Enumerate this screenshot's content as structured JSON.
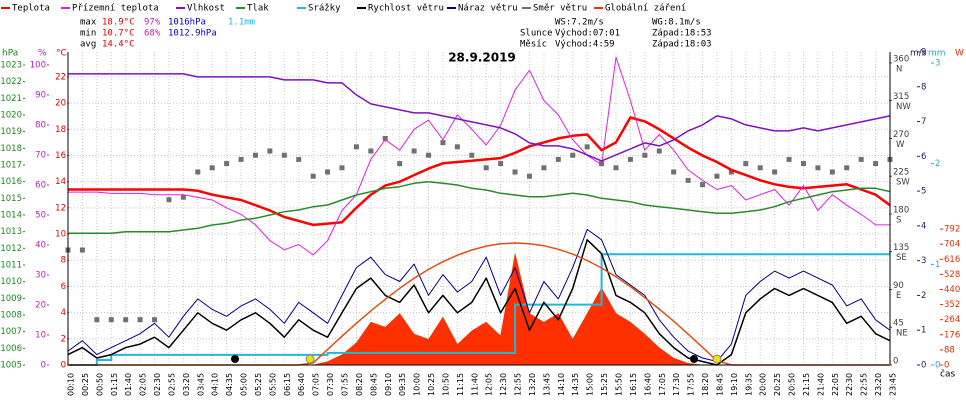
{
  "chart_data": {
    "type": "line",
    "title": "28.9.2019",
    "categories": [
      "00:10",
      "00:25",
      "00:50",
      "01:15",
      "01:40",
      "02:05",
      "02:30",
      "02:55",
      "03:20",
      "03:45",
      "04:10",
      "04:35",
      "05:00",
      "05:25",
      "05:50",
      "06:15",
      "06:40",
      "07:05",
      "07:30",
      "07:55",
      "08:20",
      "08:45",
      "09:10",
      "09:35",
      "10:00",
      "10:25",
      "10:50",
      "11:15",
      "11:40",
      "12:05",
      "12:30",
      "12:55",
      "13:20",
      "13:45",
      "14:10",
      "14:35",
      "15:00",
      "15:25",
      "15:50",
      "16:15",
      "16:40",
      "17:05",
      "17:30",
      "17:55",
      "18:20",
      "18:45",
      "19:10",
      "19:35",
      "20:00",
      "20:25",
      "20:50",
      "21:15",
      "21:40",
      "22:05",
      "22:30",
      "22:55",
      "23:20",
      "23:45"
    ],
    "x_label": "čas",
    "axes": [
      {
        "unit": "hPa",
        "color": "#1a8a1a",
        "lim": [
          1005,
          1023.78
        ],
        "ticks": [
          1005,
          1006,
          1007,
          1008,
          1009,
          1010,
          1011,
          1012,
          1013,
          1014,
          1015,
          1016,
          1017,
          1018,
          1019,
          1020,
          1021,
          1022,
          1023
        ]
      },
      {
        "unit": "%",
        "color": "#c020c0",
        "lim": [
          0,
          104.3
        ],
        "ticks": [
          0,
          10,
          20,
          30,
          40,
          50,
          60,
          70,
          80,
          90,
          100
        ]
      },
      {
        "unit": "°C",
        "color": "#e00000",
        "lim": [
          0,
          23.9
        ],
        "ticks": [
          0,
          2,
          4,
          6,
          8,
          10,
          12,
          14,
          16,
          18,
          20,
          22
        ],
        "grid": true
      },
      {
        "unit": "m/s",
        "color": "#202060",
        "lim": [
          0,
          9
        ],
        "ticks": [
          0,
          1,
          2,
          3,
          4,
          5,
          6,
          7,
          8,
          9
        ]
      },
      {
        "color": "#404040",
        "lim": [
          0,
          373
        ],
        "ticks": [
          0,
          45,
          90,
          135,
          180,
          225,
          270,
          315,
          360
        ],
        "tick_names": [
          null,
          "NE",
          "E",
          "SE",
          "S",
          "SW",
          "W",
          "NW",
          "N"
        ]
      },
      {
        "unit": "mm",
        "color": "#20a8d0",
        "lim": [
          0,
          3.11
        ],
        "ticks": [
          0,
          1,
          2,
          3
        ]
      },
      {
        "unit": "W",
        "color": "#e03000",
        "lim": [
          0,
          1824
        ],
        "ticks": [
          0,
          88,
          176,
          264,
          352,
          440,
          528,
          616,
          704,
          792
        ]
      }
    ],
    "series": [
      {
        "name": "Teplota",
        "color": "#ff0000",
        "axis": 2,
        "style": "line",
        "width": 2.5,
        "values": [
          13.4,
          13.4,
          13.4,
          13.4,
          13.4,
          13.4,
          13.4,
          13.4,
          13.4,
          13.3,
          13.0,
          12.8,
          12.6,
          12.2,
          11.8,
          11.3,
          11.0,
          10.7,
          10.8,
          10.9,
          12.0,
          13.0,
          13.7,
          14.0,
          14.5,
          15.0,
          15.4,
          15.5,
          15.6,
          15.7,
          15.8,
          16.2,
          16.7,
          17.0,
          17.3,
          17.5,
          17.6,
          16.4,
          17.0,
          18.9,
          18.6,
          18.0,
          17.3,
          16.6,
          16.0,
          15.5,
          14.9,
          14.5,
          14.1,
          13.8,
          13.6,
          13.5,
          13.6,
          13.7,
          13.8,
          13.4,
          13.0,
          12.2
        ]
      },
      {
        "name": "Přízemní teplota",
        "color": "#e020e0",
        "axis": 2,
        "style": "line",
        "width": 1,
        "values": [
          13.2,
          13.2,
          13.2,
          13.1,
          13.1,
          13.1,
          13.0,
          13.0,
          13.0,
          12.8,
          12.6,
          12.0,
          11.5,
          10.7,
          9.5,
          8.8,
          9.2,
          8.4,
          9.5,
          11.8,
          13.0,
          15.7,
          17.2,
          16.4,
          18.0,
          18.7,
          17.2,
          19.1,
          18.0,
          16.8,
          18.3,
          21.0,
          22.5,
          20.2,
          19.1,
          17.2,
          16.0,
          15.3,
          23.5,
          20.2,
          16.4,
          17.6,
          16.4,
          14.9,
          14.1,
          13.4,
          13.7,
          12.6,
          13.0,
          13.4,
          12.2,
          13.7,
          11.8,
          13.0,
          12.2,
          11.5,
          10.7,
          10.7
        ]
      },
      {
        "name": "Vlhkost",
        "color": "#8010c0",
        "axis": 1,
        "style": "line",
        "width": 1.5,
        "values": [
          97,
          97,
          97,
          97,
          97,
          97,
          97,
          97,
          97,
          96,
          96,
          96,
          96,
          96,
          96,
          95,
          95,
          95,
          94,
          94,
          90,
          87,
          86,
          85,
          84,
          84,
          83,
          82,
          81,
          80,
          79,
          77,
          74,
          73,
          73,
          72,
          70,
          68,
          70,
          72,
          74,
          73,
          75,
          78,
          80,
          83,
          82,
          80,
          79,
          78,
          78,
          79,
          78,
          79,
          80,
          81,
          82,
          83
        ]
      },
      {
        "name": "Tlak",
        "color": "#2a8a2a",
        "axis": 0,
        "style": "line",
        "width": 1.5,
        "values": [
          1012.9,
          1012.9,
          1012.9,
          1012.9,
          1013.0,
          1013.0,
          1013.0,
          1013.0,
          1013.1,
          1013.2,
          1013.4,
          1013.5,
          1013.7,
          1013.8,
          1014.0,
          1014.2,
          1014.3,
          1014.5,
          1014.6,
          1014.9,
          1015.2,
          1015.4,
          1015.6,
          1015.7,
          1015.9,
          1016.0,
          1015.9,
          1015.8,
          1015.6,
          1015.5,
          1015.3,
          1015.2,
          1015.1,
          1015.1,
          1015.2,
          1015.3,
          1015.2,
          1015.0,
          1014.9,
          1014.8,
          1014.6,
          1014.5,
          1014.4,
          1014.3,
          1014.2,
          1014.1,
          1014.1,
          1014.2,
          1014.3,
          1014.5,
          1014.8,
          1015.0,
          1015.2,
          1015.4,
          1015.5,
          1015.6,
          1015.6,
          1015.4
        ]
      },
      {
        "name": "Srážky",
        "color": "#20b8d8",
        "axis": 5,
        "style": "step",
        "width": 2,
        "values": [
          0,
          0,
          0.05,
          0.1,
          0.1,
          0.1,
          0.1,
          0.1,
          0.1,
          0.1,
          0.1,
          0.1,
          0.1,
          0.1,
          0.1,
          0.1,
          0.1,
          0.1,
          0.12,
          0.12,
          0.12,
          0.12,
          0.12,
          0.12,
          0.12,
          0.12,
          0.12,
          0.12,
          0.12,
          0.12,
          0.12,
          0.6,
          0.6,
          0.6,
          0.6,
          0.6,
          0.6,
          1.1,
          1.1,
          1.1,
          1.1,
          1.1,
          1.1,
          1.1,
          1.1,
          1.1,
          1.1,
          1.1,
          1.1,
          1.1,
          1.1,
          1.1,
          1.1,
          1.1,
          1.1,
          1.1,
          1.1,
          1.1
        ]
      },
      {
        "name": "Rychlost větru",
        "color": "#000000",
        "axis": 3,
        "style": "line",
        "width": 1.5,
        "values": [
          0.3,
          0.5,
          0.2,
          0.3,
          0.5,
          0.6,
          0.8,
          0.5,
          1.0,
          1.5,
          1.2,
          1.0,
          1.3,
          1.5,
          1.2,
          0.8,
          1.3,
          1.0,
          0.8,
          1.5,
          2.2,
          2.5,
          2.0,
          1.8,
          2.3,
          1.5,
          2.0,
          1.5,
          1.8,
          2.5,
          1.5,
          2.2,
          1.0,
          1.8,
          1.3,
          2.2,
          3.6,
          3.2,
          2.0,
          1.8,
          1.5,
          0.9,
          0.5,
          0.2,
          0.1,
          0.0,
          0.3,
          1.5,
          1.9,
          2.2,
          2.0,
          2.2,
          2.0,
          1.8,
          1.2,
          1.4,
          0.9,
          0.7
        ]
      },
      {
        "name": "Náraz větru",
        "color": "#000080",
        "axis": 3,
        "style": "line",
        "width": 1,
        "values": [
          0.4,
          0.7,
          0.3,
          0.5,
          0.7,
          0.9,
          1.2,
          0.8,
          1.4,
          1.9,
          1.6,
          1.4,
          1.7,
          1.9,
          1.6,
          1.2,
          1.8,
          1.5,
          1.2,
          2.0,
          2.8,
          3.1,
          2.6,
          2.4,
          2.9,
          2.0,
          2.6,
          2.1,
          2.4,
          3.1,
          2.0,
          2.8,
          1.5,
          2.4,
          1.9,
          2.8,
          3.9,
          3.6,
          2.6,
          2.3,
          2.0,
          1.3,
          0.8,
          0.4,
          0.2,
          0.1,
          0.6,
          2.0,
          2.4,
          2.7,
          2.5,
          2.7,
          2.5,
          2.3,
          1.7,
          1.9,
          1.3,
          1.0
        ]
      },
      {
        "name": "Směr větru",
        "color": "#707070",
        "axis": 4,
        "style": "scatter",
        "values": [
          137,
          137,
          54,
          54,
          54,
          54,
          54,
          197,
          200,
          230,
          235,
          240,
          245,
          250,
          255,
          250,
          245,
          225,
          230,
          235,
          260,
          255,
          270,
          240,
          255,
          250,
          265,
          260,
          250,
          235,
          240,
          230,
          225,
          235,
          245,
          250,
          260,
          240,
          235,
          245,
          250,
          255,
          230,
          220,
          215,
          225,
          230,
          240,
          235,
          230,
          245,
          240,
          235,
          230,
          235,
          245,
          240,
          245
        ]
      },
      {
        "name": "Globální záření",
        "color": "#ff3000",
        "axis": 6,
        "style": "area",
        "values": [
          0,
          0,
          0,
          0,
          0,
          0,
          0,
          0,
          0,
          0,
          0,
          0,
          0,
          0,
          0,
          0,
          0,
          0,
          20,
          60,
          130,
          250,
          220,
          300,
          180,
          150,
          280,
          120,
          200,
          250,
          170,
          650,
          300,
          250,
          300,
          150,
          300,
          450,
          300,
          250,
          180,
          100,
          40,
          10,
          0,
          0,
          0,
          0,
          0,
          0,
          0,
          0,
          0,
          0,
          0,
          0,
          0,
          0
        ]
      },
      {
        "color": "#e05010",
        "axis": 6,
        "style": "line",
        "width": 1.5,
        "values": [
          0,
          0,
          0,
          0,
          0,
          0,
          0,
          0,
          0,
          0,
          0,
          0,
          0,
          0,
          0,
          0,
          0,
          12,
          91,
          168,
          243,
          315,
          383,
          447,
          505,
          557,
          602,
          640,
          670,
          693,
          706,
          711,
          707,
          695,
          674,
          646,
          609,
          565,
          514,
          457,
          393,
          326,
          255,
          180,
          103,
          25,
          0,
          0,
          0,
          0,
          0,
          0,
          0,
          0,
          0,
          0,
          0,
          0
        ]
      }
    ],
    "stats": [
      [
        "max",
        "18.9°C",
        "97%",
        "1016hPa",
        "1.1mm"
      ],
      [
        "min",
        "10.7°C",
        "68%",
        "1012.9hPa"
      ],
      [
        "avg",
        "14.4°C"
      ]
    ],
    "info": [
      [
        "WS:7.2m/s",
        "WG:8.1m/s"
      ],
      [
        "Slunce",
        "Východ:07:01",
        "Západ:18:53"
      ],
      [
        "Měsíc",
        "Východ:4:59",
        "Západ:18:03"
      ]
    ]
  }
}
